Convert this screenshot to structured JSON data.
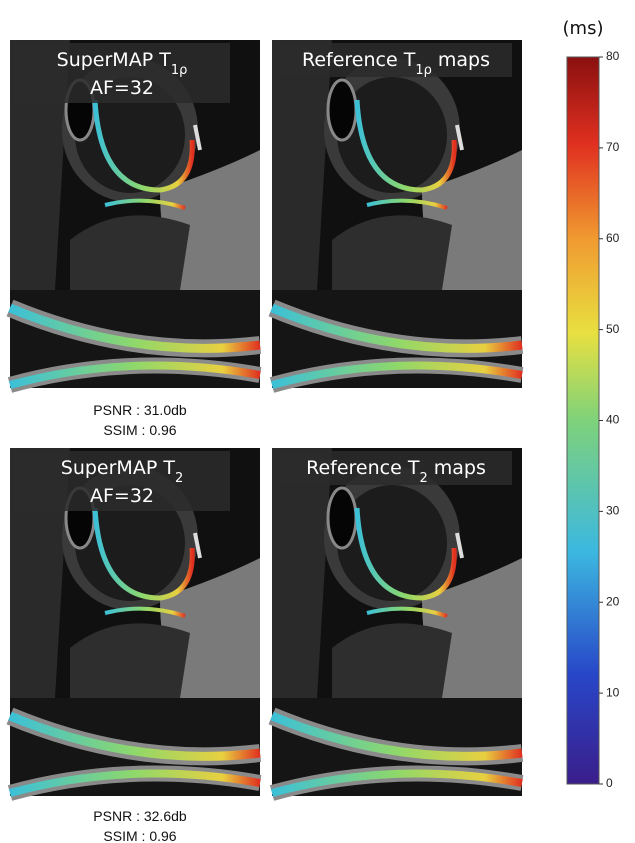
{
  "panels": [
    {
      "title": "SuperMAP T",
      "subscript": "1ρ",
      "line2": "AF=32"
    },
    {
      "title": "Reference T",
      "subscript": "1ρ",
      "suffix": "maps"
    },
    {
      "title": "SuperMAP T",
      "subscript": "2",
      "line2": "AF=32"
    },
    {
      "title": "Reference T",
      "subscript": "2",
      "suffix": "maps"
    }
  ],
  "metrics": [
    {
      "psnr": "PSNR : 31.0db",
      "ssim": "SSIM : 0.96"
    },
    {
      "psnr": "PSNR : 32.6db",
      "ssim": "SSIM : 0.96"
    }
  ],
  "colorbar": {
    "unit": "(ms)",
    "range": [
      0,
      80
    ],
    "ticks": [
      0,
      10,
      20,
      30,
      40,
      50,
      60,
      70,
      80
    ]
  }
}
